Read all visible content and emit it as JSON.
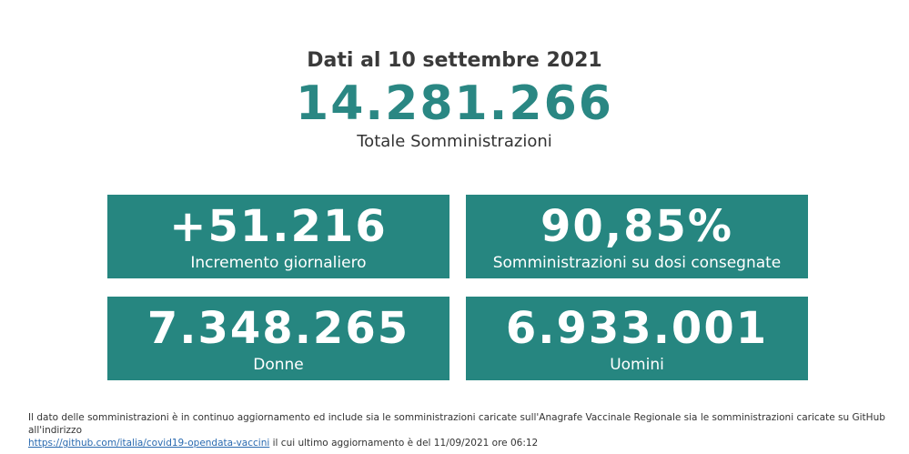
{
  "header": {
    "date_line": "Dati al 10 settembre 2021",
    "total_value": "14.281.266",
    "total_label": "Totale Somministrazioni"
  },
  "cards": [
    {
      "value": "+51.216",
      "label": "Incremento giornaliero"
    },
    {
      "value": "90,85%",
      "label": "Somministrazioni su dosi consegnate"
    },
    {
      "value": "7.348.265",
      "label": "Donne"
    },
    {
      "value": "6.933.001",
      "label": "Uomini"
    }
  ],
  "footnote": {
    "text_before": "Il dato delle somministrazioni è in continuo aggiornamento ed include sia le somministrazioni caricate sull'Anagrafe Vaccinale Regionale sia le somministrazioni caricate su GitHub all'indirizzo",
    "link_text": "https://github.com/italia/covid19-opendata-vaccini",
    "text_after": " il cui ultimo aggiornamento è del 11/09/2021 ore 06:12"
  },
  "colors": {
    "accent": "#268680",
    "title_accent": "#2a8783",
    "link": "#2a6ab0"
  }
}
